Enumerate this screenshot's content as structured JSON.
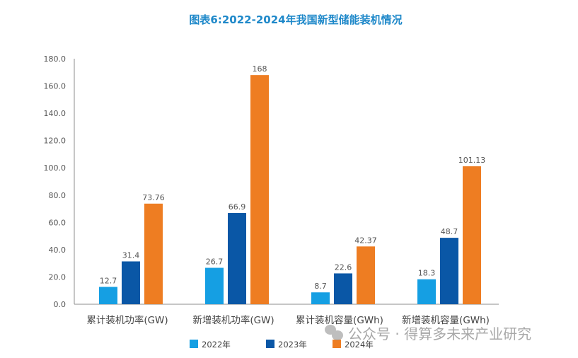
{
  "chart_data": {
    "type": "bar",
    "title": "图表6:2022-2024年我国新型储能装机情况",
    "xlabel": "",
    "ylabel": "",
    "ylim": [
      0,
      180
    ],
    "yticks": [
      "0.0",
      "20.0",
      "40.0",
      "60.0",
      "80.0",
      "100.0",
      "120.0",
      "140.0",
      "160.0",
      "180.0"
    ],
    "grid": false,
    "legend_position": "bottom",
    "categories": [
      "累计装机功率(GW)",
      "新增装机功率(GW)",
      "累计装机容量(GWh)",
      "新增装机容量(GWh)"
    ],
    "series": [
      {
        "name": "2022年",
        "color": "#159fe3",
        "values": [
          12.7,
          26.7,
          8.7,
          18.3
        ],
        "labels": [
          "12.7",
          "26.7",
          "8.7",
          "18.3"
        ]
      },
      {
        "name": "2023年",
        "color": "#0a57a6",
        "values": [
          31.4,
          66.9,
          22.6,
          48.7
        ],
        "labels": [
          "31.4",
          "66.9",
          "22.6",
          "48.7"
        ]
      },
      {
        "name": "2024年",
        "color": "#ee7d22",
        "values": [
          73.76,
          168,
          42.37,
          101.13
        ],
        "labels": [
          "73.76",
          "168",
          "42.37",
          "101.13"
        ]
      }
    ]
  },
  "watermark": {
    "text": "公众号 · 得算多未来产业研究",
    "icon": "wechat-icon"
  }
}
